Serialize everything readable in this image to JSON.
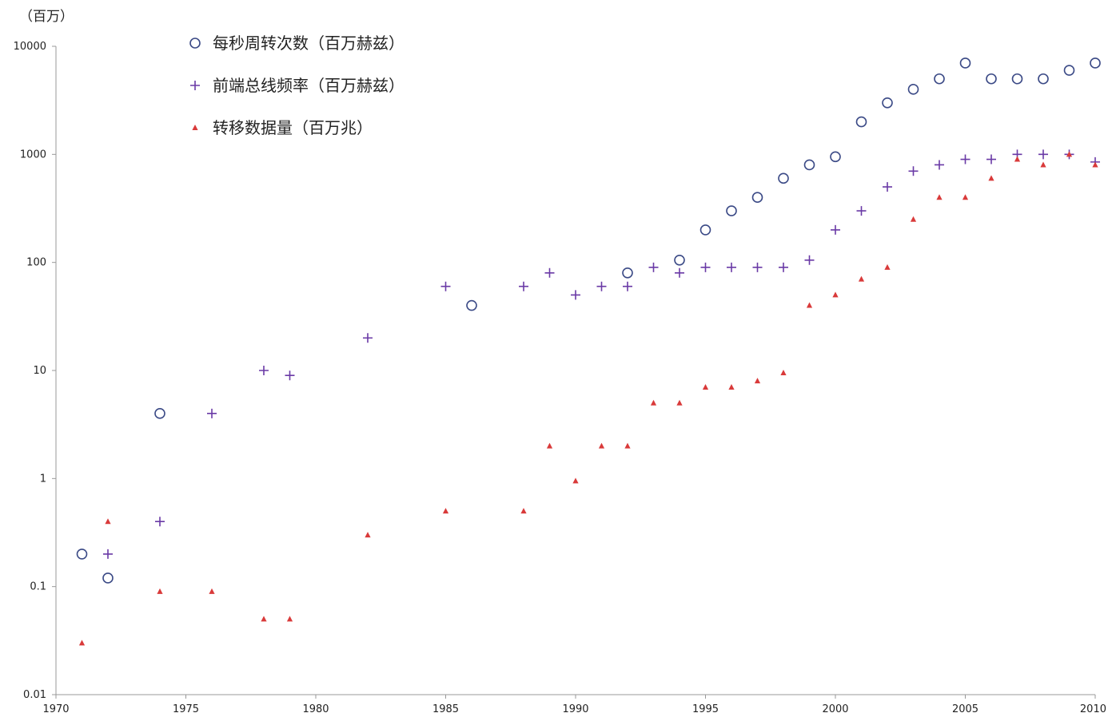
{
  "chart_data": {
    "type": "scatter",
    "y_unit": "（百万）",
    "yscale": "log",
    "xlim": [
      1970,
      2010
    ],
    "ylim": [
      0.01,
      10000
    ],
    "x_ticks": [
      "1970",
      "1975",
      "1980",
      "1985",
      "1990",
      "1995",
      "2000",
      "2005",
      "2010"
    ],
    "y_ticks": [
      "0.01",
      "0.1",
      "1",
      "10",
      "100",
      "1000",
      "10000"
    ],
    "legend_position": "top-left",
    "grid": false,
    "series": [
      {
        "name": "每秒周转次数（百万赫兹）",
        "marker": "circle",
        "color": "#3b4a86",
        "points": [
          [
            1971,
            0.2
          ],
          [
            1972,
            0.12
          ],
          [
            1974,
            4
          ],
          [
            1986,
            40
          ],
          [
            1992,
            80
          ],
          [
            1994,
            105
          ],
          [
            1995,
            200
          ],
          [
            1996,
            300
          ],
          [
            1997,
            400
          ],
          [
            1998,
            600
          ],
          [
            1999,
            800
          ],
          [
            2000,
            950
          ],
          [
            2001,
            2000
          ],
          [
            2002,
            3000
          ],
          [
            2003,
            4000
          ],
          [
            2004,
            5000
          ],
          [
            2005,
            7000
          ],
          [
            2006,
            5000
          ],
          [
            2007,
            5000
          ],
          [
            2008,
            5000
          ],
          [
            2009,
            6000
          ],
          [
            2010,
            7000
          ]
        ]
      },
      {
        "name": "前端总线频率（百万赫兹）",
        "marker": "plus",
        "color": "#6a3aa6",
        "points": [
          [
            1972,
            0.2
          ],
          [
            1974,
            0.4
          ],
          [
            1976,
            4
          ],
          [
            1978,
            10
          ],
          [
            1979,
            9
          ],
          [
            1982,
            20
          ],
          [
            1985,
            60
          ],
          [
            1988,
            60
          ],
          [
            1989,
            80
          ],
          [
            1990,
            50
          ],
          [
            1991,
            60
          ],
          [
            1992,
            60
          ],
          [
            1993,
            90
          ],
          [
            1994,
            80
          ],
          [
            1995,
            90
          ],
          [
            1996,
            90
          ],
          [
            1997,
            90
          ],
          [
            1998,
            90
          ],
          [
            1999,
            105
          ],
          [
            2000,
            200
          ],
          [
            2001,
            300
          ],
          [
            2002,
            500
          ],
          [
            2003,
            700
          ],
          [
            2004,
            800
          ],
          [
            2005,
            900
          ],
          [
            2006,
            900
          ],
          [
            2007,
            1000
          ],
          [
            2008,
            1000
          ],
          [
            2009,
            1000
          ],
          [
            2010,
            850
          ]
        ]
      },
      {
        "name": "转移数据量（百万兆）",
        "marker": "triangle",
        "color": "#d93a3a",
        "points": [
          [
            1971,
            0.03
          ],
          [
            1972,
            0.4
          ],
          [
            1974,
            0.09
          ],
          [
            1976,
            0.09
          ],
          [
            1978,
            0.05
          ],
          [
            1979,
            0.05
          ],
          [
            1982,
            0.3
          ],
          [
            1985,
            0.5
          ],
          [
            1988,
            0.5
          ],
          [
            1989,
            2
          ],
          [
            1990,
            0.95
          ],
          [
            1991,
            2
          ],
          [
            1992,
            2
          ],
          [
            1993,
            5
          ],
          [
            1994,
            5
          ],
          [
            1995,
            7
          ],
          [
            1996,
            7
          ],
          [
            1997,
            8
          ],
          [
            1998,
            9.5
          ],
          [
            1999,
            40
          ],
          [
            2000,
            50
          ],
          [
            2001,
            70
          ],
          [
            2002,
            90
          ],
          [
            2003,
            250
          ],
          [
            2004,
            400
          ],
          [
            2005,
            400
          ],
          [
            2006,
            600
          ],
          [
            2007,
            900
          ],
          [
            2008,
            800
          ],
          [
            2009,
            1000
          ],
          [
            2010,
            800
          ]
        ]
      }
    ]
  }
}
